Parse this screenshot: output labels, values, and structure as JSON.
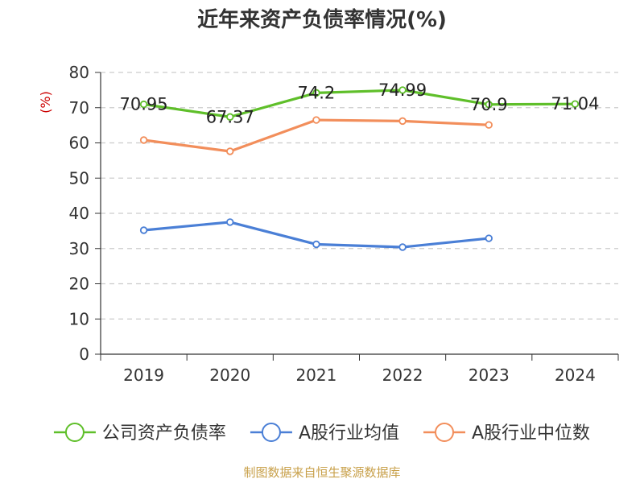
{
  "title": "近年来资产负债率情况(%)",
  "source": "制图数据来自恒生聚源数据库",
  "colors": {
    "company": "#5fbf2a",
    "industry_avg": "#4a7fd6",
    "industry_median": "#f28e5b",
    "unit": "#cc0000",
    "source": "#c8a04a",
    "grid": "#cccccc",
    "axis": "#333333"
  },
  "chart_data": {
    "type": "line",
    "title": "近年来资产负债率情况(%)",
    "ylabel": "(%)",
    "xlabel": "",
    "ylim": [
      0,
      80
    ],
    "yticks": [
      "0",
      "10",
      "20",
      "30",
      "40",
      "50",
      "60",
      "70",
      "80"
    ],
    "categories": [
      "2019",
      "2020",
      "2021",
      "2022",
      "2023",
      "2024"
    ],
    "grid": true,
    "legend": "bottom",
    "series": [
      {
        "name": "公司资产负债率",
        "key": "company",
        "values": [
          70.95,
          67.37,
          74.2,
          74.99,
          70.9,
          71.04
        ],
        "labels": [
          "70.95",
          "67.37",
          "74.2",
          "74.99",
          "70.9",
          "71.04"
        ]
      },
      {
        "name": "A股行业均值",
        "key": "industry_avg",
        "values": [
          35.2,
          37.5,
          31.2,
          30.4,
          32.9,
          null
        ]
      },
      {
        "name": "A股行业中位数",
        "key": "industry_median",
        "values": [
          60.8,
          57.6,
          66.5,
          66.2,
          65.1,
          null
        ]
      }
    ]
  }
}
